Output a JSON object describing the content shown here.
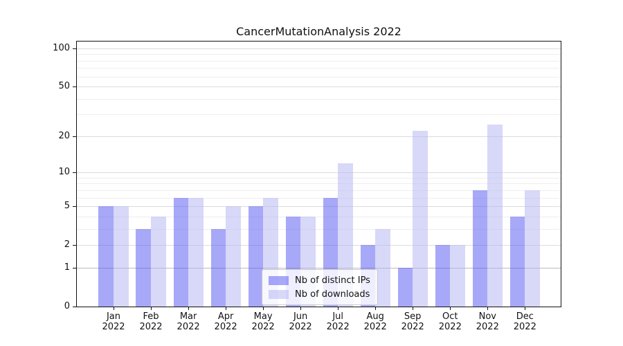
{
  "chart_data": {
    "type": "bar",
    "title": "CancerMutationAnalysis 2022",
    "year_label": "2022",
    "categories": [
      "Jan",
      "Feb",
      "Mar",
      "Apr",
      "May",
      "Jun",
      "Jul",
      "Aug",
      "Sep",
      "Oct",
      "Nov",
      "Dec"
    ],
    "series": [
      {
        "name": "Nb of distinct IPs",
        "color": "rgba(81,81,241,0.5)",
        "values": [
          5,
          3,
          6,
          3,
          5,
          4,
          6,
          2,
          1,
          2,
          7,
          4
        ]
      },
      {
        "name": "Nb of downloads",
        "color": "rgba(177,177,241,0.5)",
        "values": [
          5,
          4,
          6,
          5,
          6,
          4,
          12,
          3,
          22,
          2,
          25,
          7
        ]
      }
    ],
    "y_axis": {
      "scale": "log10(v+1)",
      "range": [
        0,
        100
      ],
      "ticks": [
        0,
        1,
        2,
        5,
        10,
        20,
        50,
        100
      ],
      "minor_ticks": [
        3,
        4,
        6,
        7,
        8,
        9,
        30,
        40,
        60,
        70,
        80,
        90
      ]
    },
    "grid": "on",
    "legend_position": "lower center"
  },
  "colors": {
    "bar_distinct_ips_on_white": "#a8a8f8",
    "bar_downloads_on_white": "#d8d8f8",
    "grid_major": "#dcdcdc",
    "grid_baseline_1": "#bbbbbb",
    "grid_minor": "#eeeeee",
    "axis": "#111111",
    "text": "#111111"
  }
}
